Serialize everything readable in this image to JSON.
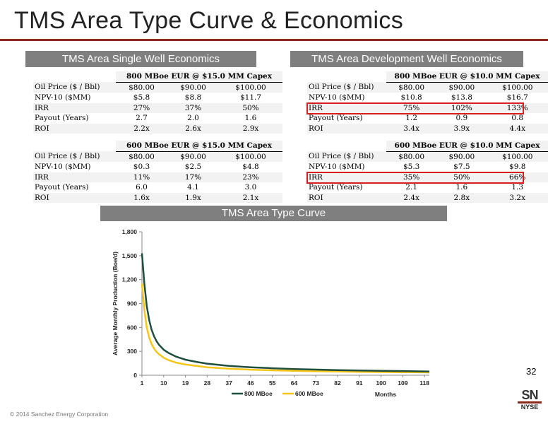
{
  "page": {
    "title": "TMS Area Type Curve & Economics",
    "page_number": "32",
    "footer": "© 2014 Sanchez Energy Corporation",
    "logo": {
      "main": "SN",
      "exchange": "NYSE"
    }
  },
  "colors": {
    "section_header_bg": "#7f7f7f",
    "title_rule": "#8b2a1a",
    "highlight_box": "#d62020",
    "series_800": "#1f4e3d",
    "series_600": "#f5c518"
  },
  "single_well": {
    "header": "TMS Area Single Well Economics",
    "tables": [
      {
        "caption": "800 MBoe EUR @ $15.0 MM Capex",
        "rows": [
          {
            "label": "Oil Price ($ / Bbl)",
            "values": [
              "$80.00",
              "$90.00",
              "$100.00"
            ]
          },
          {
            "label": "NPV-10 ($MM)",
            "values": [
              "$5.8",
              "$8.8",
              "$11.7"
            ]
          },
          {
            "label": "IRR",
            "values": [
              "27%",
              "37%",
              "50%"
            ]
          },
          {
            "label": "Payout (Years)",
            "values": [
              "2.7",
              "2.0",
              "1.6"
            ]
          },
          {
            "label": "ROI",
            "values": [
              "2.2x",
              "2.6x",
              "2.9x"
            ]
          }
        ]
      },
      {
        "caption": "600 MBoe EUR @ $15.0 MM Capex",
        "rows": [
          {
            "label": "Oil Price ($ / Bbl)",
            "values": [
              "$80.00",
              "$90.00",
              "$100.00"
            ]
          },
          {
            "label": "NPV-10 ($MM)",
            "values": [
              "$0.3",
              "$2.5",
              "$4.8"
            ]
          },
          {
            "label": "IRR",
            "values": [
              "11%",
              "17%",
              "23%"
            ]
          },
          {
            "label": "Payout (Years)",
            "values": [
              "6.0",
              "4.1",
              "3.0"
            ]
          },
          {
            "label": "ROI",
            "values": [
              "1.6x",
              "1.9x",
              "2.1x"
            ]
          }
        ]
      }
    ]
  },
  "development_well": {
    "header": "TMS Area Development Well Economics",
    "tables": [
      {
        "caption": "800 MBoe EUR @ $10.0 MM Capex",
        "rows": [
          {
            "label": "Oil Price ($ / Bbl)",
            "values": [
              "$80.00",
              "$90.00",
              "$100.00"
            ]
          },
          {
            "label": "NPV-10 ($MM)",
            "values": [
              "$10.8",
              "$13.8",
              "$16.7"
            ]
          },
          {
            "label": "IRR",
            "values": [
              "75%",
              "102%",
              "133%"
            ]
          },
          {
            "label": "Payout (Years)",
            "values": [
              "1.2",
              "0.9",
              "0.8"
            ]
          },
          {
            "label": "ROI",
            "values": [
              "3.4x",
              "3.9x",
              "4.4x"
            ]
          }
        ]
      },
      {
        "caption": "600 MBoe EUR @ $10.0 MM Capex",
        "rows": [
          {
            "label": "Oil Price ($ / Bbl)",
            "values": [
              "$80.00",
              "$90.00",
              "$100.00"
            ]
          },
          {
            "label": "NPV-10 ($MM)",
            "values": [
              "$5.3",
              "$7.5",
              "$9.8"
            ]
          },
          {
            "label": "IRR",
            "values": [
              "35%",
              "50%",
              "66%"
            ]
          },
          {
            "label": "Payout (Years)",
            "values": [
              "2.1",
              "1.6",
              "1.3"
            ]
          },
          {
            "label": "ROI",
            "values": [
              "2.4x",
              "2.8x",
              "3.2x"
            ]
          }
        ]
      }
    ]
  },
  "chart_data": {
    "type": "line",
    "title": "TMS Area Type Curve",
    "xlabel": "Months",
    "ylabel": "Average Monthly Production (Boe/d)",
    "xlim": [
      1,
      120
    ],
    "ylim": [
      0,
      1800
    ],
    "x_ticks": [
      "1",
      "10",
      "19",
      "28",
      "37",
      "46",
      "55",
      "64",
      "73",
      "82",
      "91",
      "100",
      "109",
      "118"
    ],
    "y_ticks": [
      "0",
      "300",
      "600",
      "900",
      "1,200",
      "1,500",
      "1,800"
    ],
    "legend_position": "bottom",
    "series": [
      {
        "name": "800 MBoe",
        "x": [
          1,
          2,
          3,
          4,
          5,
          6,
          7,
          8,
          10,
          12,
          15,
          19,
          24,
          28,
          37,
          46,
          55,
          64,
          73,
          82,
          91,
          100,
          109,
          118,
          120
        ],
        "y": [
          1530,
          1150,
          870,
          690,
          570,
          490,
          430,
          385,
          320,
          280,
          235,
          195,
          165,
          145,
          118,
          100,
          88,
          78,
          71,
          65,
          60,
          56,
          52,
          48,
          47
        ]
      },
      {
        "name": "600 MBoe",
        "x": [
          1,
          2,
          3,
          4,
          5,
          6,
          7,
          8,
          10,
          12,
          15,
          19,
          24,
          28,
          37,
          46,
          55,
          64,
          73,
          82,
          91,
          100,
          109,
          118,
          120
        ],
        "y": [
          1150,
          820,
          600,
          470,
          390,
          335,
          295,
          265,
          220,
          190,
          160,
          135,
          115,
          100,
          82,
          70,
          62,
          55,
          50,
          46,
          43,
          40,
          38,
          36,
          35
        ]
      }
    ]
  }
}
